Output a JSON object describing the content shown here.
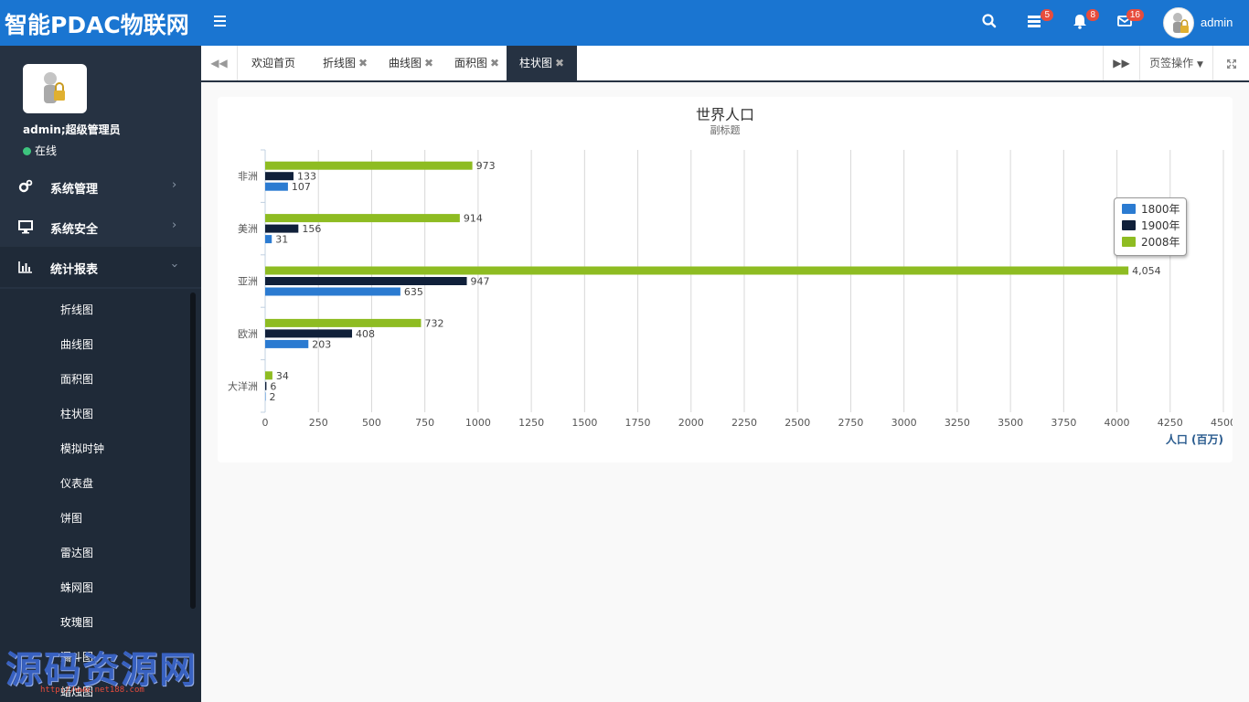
{
  "app": {
    "brand": "智能PDAC物联网"
  },
  "header": {
    "badges": {
      "messages": "5",
      "notifications": "8",
      "mail": "16"
    },
    "username": "admin"
  },
  "sidebar": {
    "user_title": "admin;超级管理员",
    "status": "在线",
    "menu": [
      {
        "label": "系统管理",
        "icon": "gears-icon"
      },
      {
        "label": "系统安全",
        "icon": "monitor-icon"
      },
      {
        "label": "统计报表",
        "icon": "bar-chart-icon"
      }
    ],
    "submenu": [
      "折线图",
      "曲线图",
      "面积图",
      "柱状图",
      "模拟时钟",
      "仪表盘",
      "饼图",
      "雷达图",
      "蛛网图",
      "玫瑰图",
      "漏斗图",
      "蜡烛图"
    ],
    "watermark": "源码资源网",
    "watermark_url": "http://www.net188.com"
  },
  "tabs": {
    "items": [
      "欢迎首页",
      "折线图",
      "曲线图",
      "面积图",
      "柱状图"
    ],
    "close_mark": "✖",
    "page_ops": "页签操作"
  },
  "colors": {
    "s1800": "#2b7bd1",
    "s1900": "#10203a",
    "s2008": "#8ebc22",
    "accent": "#1a75d1",
    "sidebar": "#263242"
  },
  "chart_data": {
    "type": "bar",
    "orientation": "horizontal",
    "title": "世界人口",
    "subtitle": "副标题",
    "xlabel": "人口 (百万)",
    "ylabel": "",
    "categories": [
      "非洲",
      "美洲",
      "亚洲",
      "欧洲",
      "大洋洲"
    ],
    "series": [
      {
        "name": "1800年",
        "values": [
          107,
          31,
          635,
          203,
          2
        ]
      },
      {
        "name": "1900年",
        "values": [
          133,
          156,
          947,
          408,
          6
        ]
      },
      {
        "name": "2008年",
        "values": [
          973,
          914,
          4054,
          732,
          34
        ]
      }
    ],
    "xlim": [
      0,
      4500
    ],
    "xticks": [
      "0",
      "250",
      "500",
      "750",
      "1000",
      "1250",
      "1500",
      "1750",
      "2000",
      "2250",
      "2500",
      "2750",
      "3000",
      "3250",
      "3500",
      "3750",
      "4000",
      "4250",
      "4500"
    ],
    "data_labels": [
      [
        "107",
        "31",
        "635",
        "203",
        "2"
      ],
      [
        "133",
        "156",
        "947",
        "408",
        "6"
      ],
      [
        "973",
        "914",
        "4,054",
        "732",
        "34"
      ]
    ],
    "grid": true,
    "legend": "top-right"
  }
}
